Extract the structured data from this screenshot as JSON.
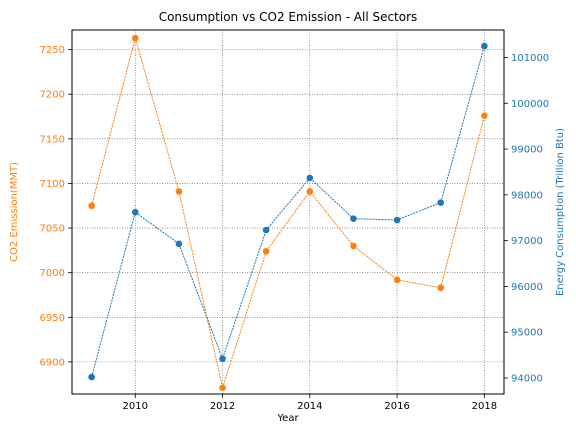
{
  "chart_data": {
    "type": "line",
    "title": "Consumption vs CO2 Emission - All Sectors",
    "xlabel": "Year",
    "x": [
      2009,
      2010,
      2011,
      2012,
      2013,
      2014,
      2015,
      2016,
      2017,
      2018
    ],
    "x_ticks": [
      "2010",
      "2012",
      "2014",
      "2016",
      "2018"
    ],
    "xlim": [
      2008.55,
      2018.45
    ],
    "grid": true,
    "series": [
      {
        "ylabel": "CO2 Emission(MMT)",
        "axis": "left",
        "color": "#ff7f0e",
        "values": [
          7075,
          7263,
          7091,
          6871,
          7024,
          7091,
          7030,
          6992,
          6983,
          7176
        ],
        "ylim": [
          6864,
          7272
        ],
        "ticks": [
          "6900",
          "6950",
          "7000",
          "7050",
          "7100",
          "7150",
          "7200",
          "7250"
        ]
      },
      {
        "ylabel": "Energy Consumption (Trillion Btu)",
        "axis": "right",
        "color": "#1f77b4",
        "values": [
          94020,
          97620,
          96930,
          94420,
          97230,
          98370,
          97480,
          97450,
          97830,
          101250
        ],
        "ylim": [
          93650,
          101600
        ],
        "ticks": [
          "94000",
          "95000",
          "96000",
          "97000",
          "98000",
          "99000",
          "100000",
          "101000"
        ]
      }
    ]
  }
}
